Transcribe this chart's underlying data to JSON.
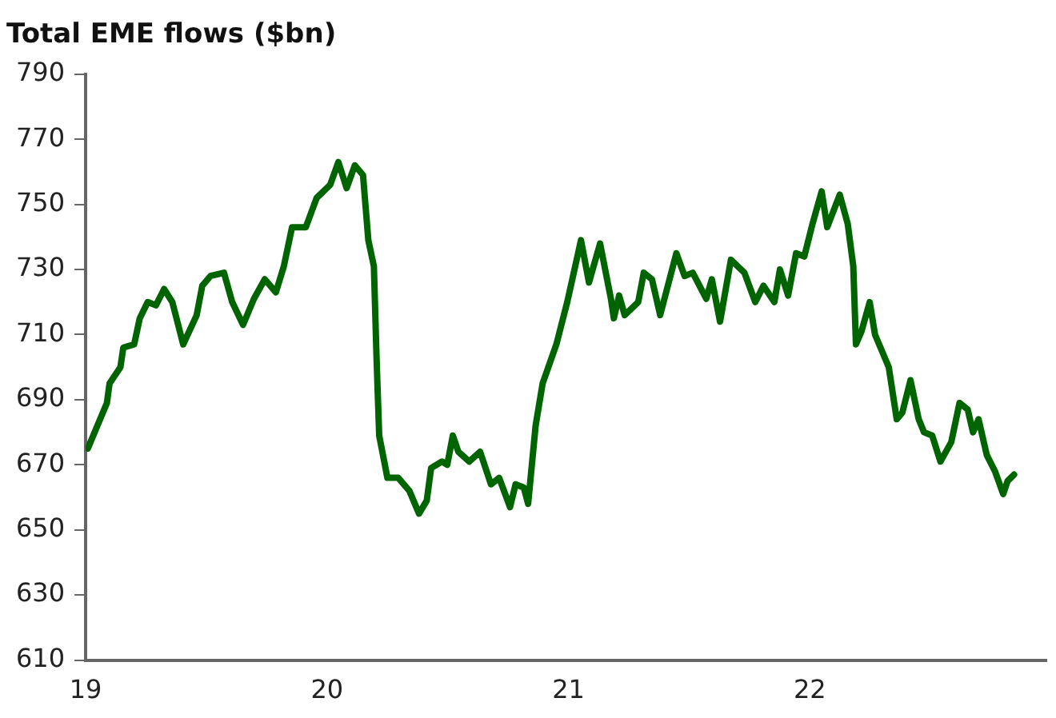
{
  "chart_data": {
    "type": "line",
    "title": "Total EME flows ($bn)",
    "xlim": [
      19,
      22.98
    ],
    "xticks": [
      19,
      20,
      21,
      22
    ],
    "ylim": [
      610,
      790
    ],
    "yticks": [
      610,
      630,
      650,
      670,
      690,
      710,
      730,
      750,
      770,
      790
    ],
    "grid": false,
    "legend": false,
    "marker": "none",
    "line_style": "solid",
    "series": [
      {
        "color": "#006400",
        "x": [
          19.009,
          19.088,
          19.099,
          19.144,
          19.156,
          19.201,
          19.224,
          19.257,
          19.291,
          19.325,
          19.359,
          19.404,
          19.46,
          19.483,
          19.517,
          19.573,
          19.607,
          19.652,
          19.697,
          19.742,
          19.788,
          19.821,
          19.855,
          19.912,
          19.957,
          20.013,
          20.047,
          20.081,
          20.115,
          20.149,
          20.171,
          20.194,
          20.205,
          20.216,
          20.25,
          20.295,
          20.341,
          20.381,
          20.413,
          20.431,
          20.476,
          20.498,
          20.521,
          20.544,
          20.589,
          20.634,
          20.679,
          20.713,
          20.758,
          20.781,
          20.815,
          20.833,
          20.864,
          20.893,
          20.95,
          20.995,
          21.052,
          21.085,
          21.131,
          21.176,
          21.188,
          21.21,
          21.233,
          21.289,
          21.312,
          21.346,
          21.38,
          21.447,
          21.481,
          21.515,
          21.571,
          21.594,
          21.628,
          21.673,
          21.729,
          21.774,
          21.808,
          21.853,
          21.876,
          21.91,
          21.943,
          21.977,
          22.011,
          22.049,
          22.072,
          22.124,
          22.157,
          22.18,
          22.191,
          22.214,
          22.248,
          22.27,
          22.327,
          22.36,
          22.383,
          22.417,
          22.451,
          22.473,
          22.507,
          22.541,
          22.586,
          22.62,
          22.654,
          22.676,
          22.699,
          22.733,
          22.767,
          22.801,
          22.819,
          22.846
        ],
        "values": [
          675,
          689,
          695,
          700,
          706,
          707,
          715,
          720,
          719,
          724,
          720,
          707,
          716,
          725,
          728,
          729,
          720,
          713,
          721,
          727,
          723,
          731,
          743,
          743,
          752,
          756,
          763,
          755,
          762,
          759,
          739,
          731,
          703,
          679,
          666,
          666,
          662,
          655,
          659,
          669,
          671,
          670,
          679,
          674,
          671,
          674,
          664,
          666,
          657,
          664,
          663,
          658,
          682,
          695,
          707,
          720,
          739,
          726,
          738,
          721,
          715,
          722,
          716,
          720,
          729,
          727,
          716,
          735,
          728,
          729,
          721,
          727,
          714,
          733,
          729,
          720,
          725,
          720,
          730,
          722,
          735,
          734,
          744,
          754,
          743,
          753,
          744,
          731,
          707,
          711,
          720,
          710,
          700,
          684,
          686,
          696,
          684,
          680,
          679,
          671,
          677,
          689,
          687,
          680,
          684,
          673,
          668,
          661,
          665,
          667
        ]
      }
    ]
  }
}
